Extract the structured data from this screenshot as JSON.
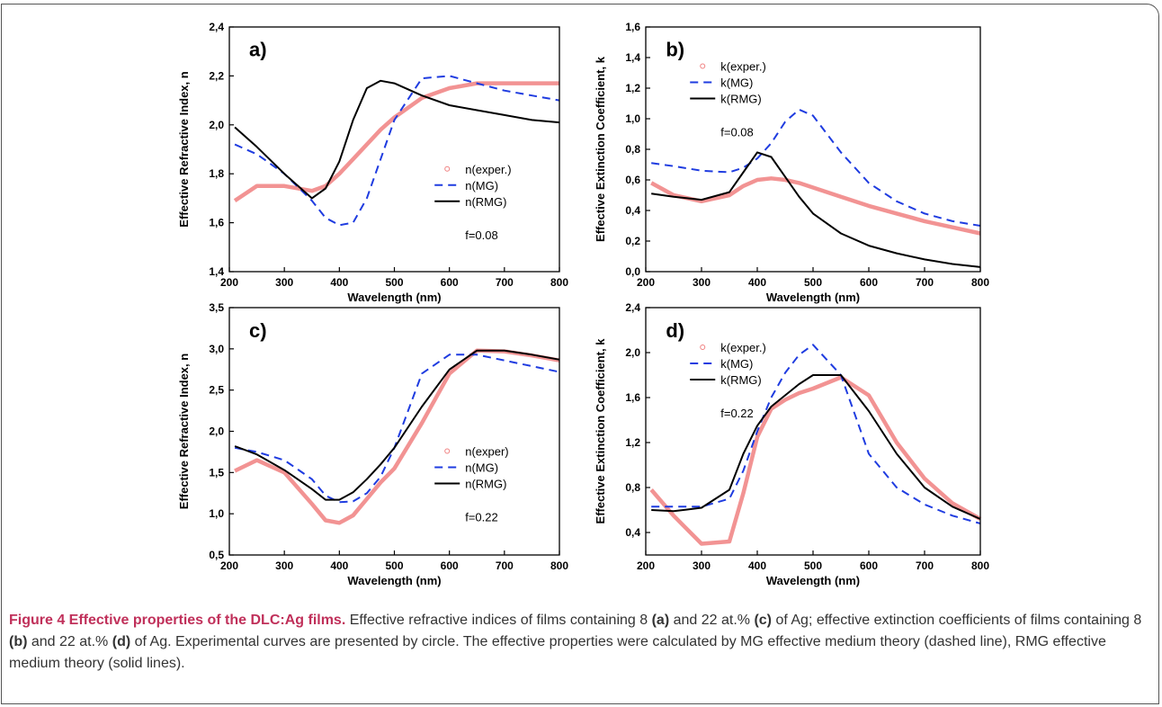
{
  "chart_data": [
    {
      "type": "line",
      "panel_label": "a)",
      "annotation": "f=0.08",
      "xlabel": "Wavelength (nm)",
      "ylabel": "Effective Refractive Index, n",
      "x": [
        210,
        250,
        300,
        350,
        375,
        400,
        425,
        450,
        475,
        500,
        550,
        600,
        650,
        700,
        750,
        800
      ],
      "xlim": [
        200,
        800
      ],
      "xticks": [
        200,
        300,
        400,
        500,
        600,
        700,
        800
      ],
      "ylim": [
        1.4,
        2.4
      ],
      "yticks": [
        {
          "value": 1.4,
          "label": "1,4"
        },
        {
          "value": 1.6,
          "label": "1,6"
        },
        {
          "value": 1.8,
          "label": "1,8"
        },
        {
          "value": 2.0,
          "label": "2,0"
        },
        {
          "value": 2.2,
          "label": "2,2"
        },
        {
          "value": 2.4,
          "label": "2,4"
        }
      ],
      "legend": "center right",
      "series": [
        {
          "name": "n(exper.)",
          "color": "#f08080",
          "linestyle": "circles",
          "values": [
            1.69,
            1.75,
            1.75,
            1.73,
            1.75,
            1.8,
            1.86,
            1.92,
            1.98,
            2.03,
            2.11,
            2.15,
            2.17,
            2.17,
            2.17,
            2.17
          ]
        },
        {
          "name": "n(MG)",
          "color": "#1f3ce0",
          "linestyle": "dashed",
          "values": [
            1.92,
            1.88,
            1.8,
            1.69,
            1.62,
            1.59,
            1.6,
            1.7,
            1.86,
            2.02,
            2.19,
            2.2,
            2.17,
            2.14,
            2.12,
            2.1
          ]
        },
        {
          "name": "n(RMG)",
          "color": "#000000",
          "linestyle": "solid",
          "values": [
            1.99,
            1.91,
            1.8,
            1.7,
            1.74,
            1.85,
            2.02,
            2.15,
            2.18,
            2.17,
            2.12,
            2.08,
            2.06,
            2.04,
            2.02,
            2.01
          ]
        }
      ]
    },
    {
      "type": "line",
      "panel_label": "b)",
      "annotation": "f=0.08",
      "xlabel": "Wavelength (nm)",
      "ylabel": "Effective Extinction Coefficient, k",
      "x": [
        210,
        250,
        300,
        350,
        375,
        400,
        425,
        450,
        475,
        500,
        550,
        600,
        650,
        700,
        750,
        800
      ],
      "xlim": [
        200,
        800
      ],
      "xticks": [
        200,
        300,
        400,
        500,
        600,
        700,
        800
      ],
      "ylim": [
        0,
        1.6
      ],
      "yticks": [
        {
          "value": 0,
          "label": "0,0"
        },
        {
          "value": 0.2,
          "label": "0,2"
        },
        {
          "value": 0.4,
          "label": "0,4"
        },
        {
          "value": 0.6,
          "label": "0,6"
        },
        {
          "value": 0.8,
          "label": "0,8"
        },
        {
          "value": 1.0,
          "label": "1,0"
        },
        {
          "value": 1.2,
          "label": "1,2"
        },
        {
          "value": 1.4,
          "label": "1,4"
        },
        {
          "value": 1.6,
          "label": "1,6"
        }
      ],
      "legend": "upper left",
      "series": [
        {
          "name": "k(exper.)",
          "color": "#f08080",
          "linestyle": "circles",
          "values": [
            0.58,
            0.5,
            0.46,
            0.5,
            0.56,
            0.6,
            0.61,
            0.6,
            0.58,
            0.55,
            0.49,
            0.43,
            0.38,
            0.33,
            0.29,
            0.25
          ]
        },
        {
          "name": "k(MG)",
          "color": "#1f3ce0",
          "linestyle": "dashed",
          "values": [
            0.71,
            0.69,
            0.66,
            0.65,
            0.68,
            0.74,
            0.84,
            0.98,
            1.06,
            1.02,
            0.78,
            0.58,
            0.46,
            0.38,
            0.33,
            0.3
          ]
        },
        {
          "name": "k(RMG)",
          "color": "#000000",
          "linestyle": "solid",
          "values": [
            0.51,
            0.49,
            0.47,
            0.52,
            0.65,
            0.78,
            0.75,
            0.62,
            0.49,
            0.38,
            0.25,
            0.17,
            0.12,
            0.08,
            0.05,
            0.03
          ]
        }
      ]
    },
    {
      "type": "line",
      "panel_label": "c)",
      "annotation": "f=0.22",
      "xlabel": "Wavelength (nm)",
      "ylabel": "Effective Refractive Index, n",
      "x": [
        210,
        250,
        300,
        350,
        375,
        400,
        425,
        450,
        475,
        500,
        550,
        600,
        650,
        700,
        750,
        800
      ],
      "xlim": [
        200,
        800
      ],
      "xticks": [
        200,
        300,
        400,
        500,
        600,
        700,
        800
      ],
      "ylim": [
        0.5,
        3.5
      ],
      "yticks": [
        {
          "value": 0.5,
          "label": "0,5"
        },
        {
          "value": 1.0,
          "label": "1,0"
        },
        {
          "value": 1.5,
          "label": "1,5"
        },
        {
          "value": 2.0,
          "label": "2,0"
        },
        {
          "value": 2.5,
          "label": "2,5"
        },
        {
          "value": 3.0,
          "label": "3,0"
        },
        {
          "value": 3.5,
          "label": "3,5"
        }
      ],
      "legend": "center right",
      "series": [
        {
          "name": "n(exper)",
          "color": "#f08080",
          "linestyle": "circles",
          "values": [
            1.52,
            1.65,
            1.5,
            1.12,
            0.92,
            0.89,
            0.98,
            1.18,
            1.38,
            1.55,
            2.1,
            2.7,
            2.98,
            2.97,
            2.92,
            2.86
          ]
        },
        {
          "name": "n(MG)",
          "color": "#1f3ce0",
          "linestyle": "dashed",
          "values": [
            1.8,
            1.75,
            1.65,
            1.42,
            1.22,
            1.14,
            1.15,
            1.25,
            1.45,
            1.8,
            2.7,
            2.93,
            2.93,
            2.86,
            2.79,
            2.72
          ]
        },
        {
          "name": "n(RMG)",
          "color": "#000000",
          "linestyle": "solid",
          "values": [
            1.82,
            1.72,
            1.53,
            1.3,
            1.17,
            1.17,
            1.26,
            1.42,
            1.6,
            1.8,
            2.3,
            2.75,
            2.98,
            2.98,
            2.93,
            2.87
          ]
        }
      ]
    },
    {
      "type": "line",
      "panel_label": "d)",
      "annotation": "f=0.22",
      "xlabel": "Wavelength (nm)",
      "ylabel": "Effective Extinction Coefficient, k",
      "x": [
        210,
        250,
        300,
        350,
        375,
        400,
        425,
        450,
        475,
        500,
        550,
        600,
        650,
        700,
        750,
        800
      ],
      "xlim": [
        200,
        800
      ],
      "xticks": [
        200,
        300,
        400,
        500,
        600,
        700,
        800
      ],
      "ylim": [
        0.2,
        2.4
      ],
      "yticks": [
        {
          "value": 0.4,
          "label": "0,4"
        },
        {
          "value": 0.8,
          "label": "0,8"
        },
        {
          "value": 1.2,
          "label": "1,2"
        },
        {
          "value": 1.6,
          "label": "1,6"
        },
        {
          "value": 2.0,
          "label": "2,0"
        },
        {
          "value": 2.4,
          "label": "2,4"
        }
      ],
      "legend": "upper left",
      "series": [
        {
          "name": "k(exper.)",
          "color": "#f08080",
          "linestyle": "circles",
          "values": [
            0.78,
            0.55,
            0.3,
            0.32,
            0.75,
            1.25,
            1.5,
            1.58,
            1.64,
            1.68,
            1.78,
            1.62,
            1.2,
            0.88,
            0.66,
            0.52
          ]
        },
        {
          "name": "k(MG)",
          "color": "#1f3ce0",
          "linestyle": "dashed",
          "values": [
            0.63,
            0.63,
            0.63,
            0.7,
            0.95,
            1.3,
            1.6,
            1.82,
            1.98,
            2.07,
            1.8,
            1.1,
            0.8,
            0.65,
            0.55,
            0.48
          ]
        },
        {
          "name": "k(RMG)",
          "color": "#000000",
          "linestyle": "solid",
          "values": [
            0.6,
            0.59,
            0.62,
            0.78,
            1.1,
            1.35,
            1.52,
            1.62,
            1.72,
            1.8,
            1.8,
            1.48,
            1.1,
            0.8,
            0.63,
            0.52
          ]
        }
      ]
    }
  ],
  "caption": {
    "title": "Figure 4 Effective properties of the DLC:Ag films.",
    "parts": [
      "Effective refractive indices of films containing 8 ",
      "(a)",
      " and 22 at.% ",
      "(c)",
      " of Ag; effective extinction coefficients of films containing 8 ",
      "(b)",
      " and 22 at.% ",
      "(d)",
      " of Ag. Experimental curves are presented by circle. The effective properties were calculated by MG effective medium theory (dashed line), RMG effective medium theory (solid lines)."
    ]
  }
}
